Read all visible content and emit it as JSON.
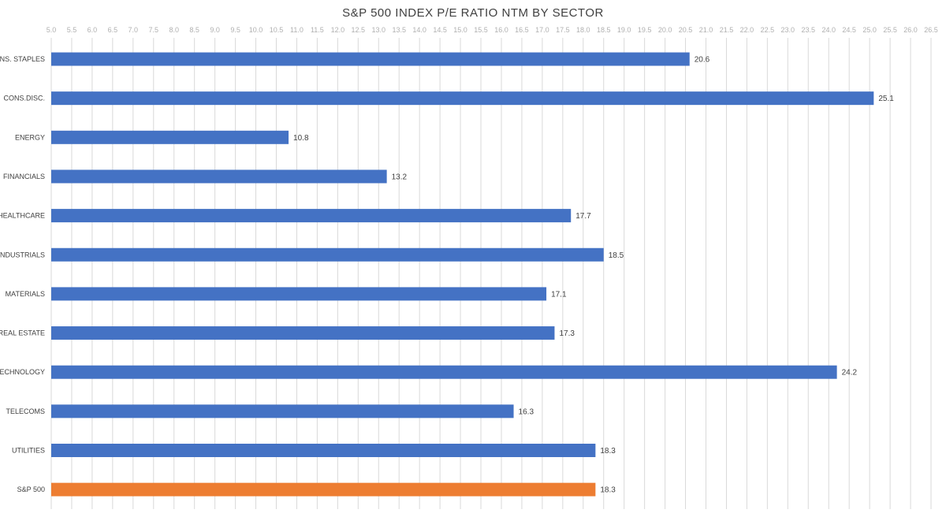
{
  "chart_data": {
    "type": "bar",
    "orientation": "horizontal",
    "title": "S&P 500 INDEX P/E RATIO NTM BY SECTOR",
    "xlim": [
      5.0,
      26.5
    ],
    "xtick_step": 0.5,
    "grid": true,
    "xaxis_position": "top",
    "categories": [
      "CONS. STAPLES",
      "CONS.DISC.",
      "ENERGY",
      "FINANCIALS",
      "HEALTHCARE",
      "INDUSTRIALS",
      "MATERIALS",
      "REAL ESTATE",
      "TECHNOLOGY",
      "TELECOMS",
      "UTILITIES",
      "S&P 500"
    ],
    "values": [
      20.6,
      25.1,
      10.8,
      13.2,
      17.7,
      18.5,
      17.1,
      17.3,
      24.2,
      16.3,
      18.3,
      18.3
    ],
    "data_labels": [
      "20.6",
      "25.1",
      "10.8",
      "13.2",
      "17.7",
      "18.5",
      "17.1",
      "17.3",
      "24.2",
      "16.3",
      "18.3",
      "18.3"
    ],
    "colors": {
      "default": "#4472c4",
      "highlight": "#ed7d31"
    },
    "highlight_category": "S&P 500"
  }
}
